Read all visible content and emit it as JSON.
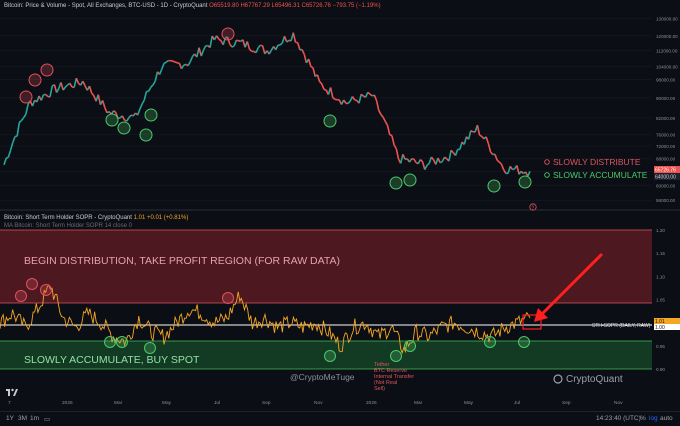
{
  "header": {
    "title": "Bitcoin: Price & Volume - Spot, All Exchanges, BTC-USD - 1D - CryptoQuant",
    "ohlc": "O65519.80 H67767.29 L65496.31 C65726.76 −793.75 (−1.19%)",
    "indicator_title": "Bitcoin: Short Term Holder SOPR - CryptoQuant",
    "indicator_values": "1.01  +0.01 (+0.81%)",
    "indicator_sub": "MA Bitcoin: Short Term Holder SOPR 14 close 0"
  },
  "annotations": {
    "begin_distribution": "BEGIN DISTRIBUTION, TAKE PROFIT REGION (FOR RAW DATA)",
    "slowly_accumulate": "SLOWLY ACCUMULATE, BUY SPOT",
    "tether_note": [
      "Tether",
      "BTC Reserve",
      "Internal Transfer",
      "(Not Real",
      "Sell)"
    ],
    "sopr_label": "STH-SOPR (DAILY, RAW)",
    "credit": "@CryptoMeTuge",
    "brand": "CryptoQuant",
    "legend_distribute": "SLOWLY DISTRIBUTE",
    "legend_accumulate": "SLOWLY ACCUMULATE",
    "help_mark": "?"
  },
  "colors": {
    "distribute": "#e0505a",
    "accumulate": "#4ec86a",
    "price_up": "#26a69a",
    "price_down": "#ef5350",
    "sopr_line": "#f5a623",
    "arrow": "#ff1f1f"
  },
  "bottom": {
    "ranges": [
      "1Y",
      "3M",
      "1m"
    ],
    "time": "14:23:40 (UTC)",
    "pct": "%",
    "log": "log",
    "auto": "auto"
  },
  "chart_data": [
    {
      "type": "line",
      "title": "Bitcoin: Price & Volume - Spot, All Exchanges, BTC-USD - 1D",
      "series": [
        {
          "name": "BTC-USD",
          "x": [
            "2024-11",
            "2024-12",
            "2025-01",
            "2025-02",
            "2025-03",
            "2025-04",
            "2025-05",
            "2025-06",
            "2025-07",
            "2025-08",
            "2025-09",
            "2025-10",
            "2025-11",
            "2025-12",
            "2026-01",
            "2026-02",
            "2026-03",
            "2026-04",
            "2026-05",
            "2026-06",
            "2026-07"
          ],
          "values": [
            66000,
            88000,
            94000,
            97000,
            84000,
            82000,
            104000,
            106000,
            118000,
            116000,
            112000,
            121000,
            96000,
            88000,
            91000,
            68000,
            66000,
            69000,
            78000,
            65000,
            64000
          ]
        }
      ],
      "x_tick_labels": [
        "7",
        "2025",
        "Mar",
        "May",
        "Jul",
        "Sep",
        "Nov",
        "2026",
        "Mar",
        "May",
        "Jul",
        "Sep",
        "Nov"
      ],
      "y_tick_labels": [
        "130000.00",
        "120000.00",
        "112000.00",
        "104000.00",
        "98000.00",
        "90000.00",
        "82000.00",
        "76000.00",
        "72000.00",
        "68000.00",
        "64000.00",
        "60000.00",
        "56000.00"
      ],
      "ylim": [
        54000,
        134000
      ],
      "last_price_label": "65726.76",
      "last_price_label_2": "64000.00"
    },
    {
      "type": "line",
      "title": "Bitcoin: Short Term Holder SOPR",
      "series": [
        {
          "name": "STH-SOPR (DAILY, RAW)",
          "values": [
            1.0,
            1.02,
            0.99,
            1.03,
            1.08,
            1.01,
            0.99,
            1.02,
            1.0,
            0.97,
            0.96,
            1.01,
            0.98,
            0.97,
            1.0,
            1.03,
            1.02,
            1.0,
            1.01,
            1.06,
            1.0,
            1.01,
            0.99,
            1.0,
            0.99,
            1.0,
            0.98,
            0.95,
            0.99,
            1.0,
            0.97,
            0.99,
            0.94,
            0.98,
            0.97,
            0.99,
            1.0,
            0.99,
            0.98,
            0.97,
            0.99,
            1.0,
            1.01
          ]
        }
      ],
      "bands": [
        {
          "label": "BEGIN DISTRIBUTION, TAKE PROFIT REGION (FOR RAW DATA)",
          "from": 1.05,
          "to": 1.2
        },
        {
          "label": "SLOWLY ACCUMULATE, BUY SPOT",
          "from": 0.9,
          "to": 0.97
        }
      ],
      "reference_line": 1.0,
      "y_tick_labels": [
        "1.20",
        "1.15",
        "1.10",
        "1.05",
        "1.00",
        "0.95",
        "0.90"
      ],
      "ylim": [
        0.88,
        1.22
      ],
      "last_value_labels": [
        "1.01",
        "1.00"
      ]
    }
  ]
}
